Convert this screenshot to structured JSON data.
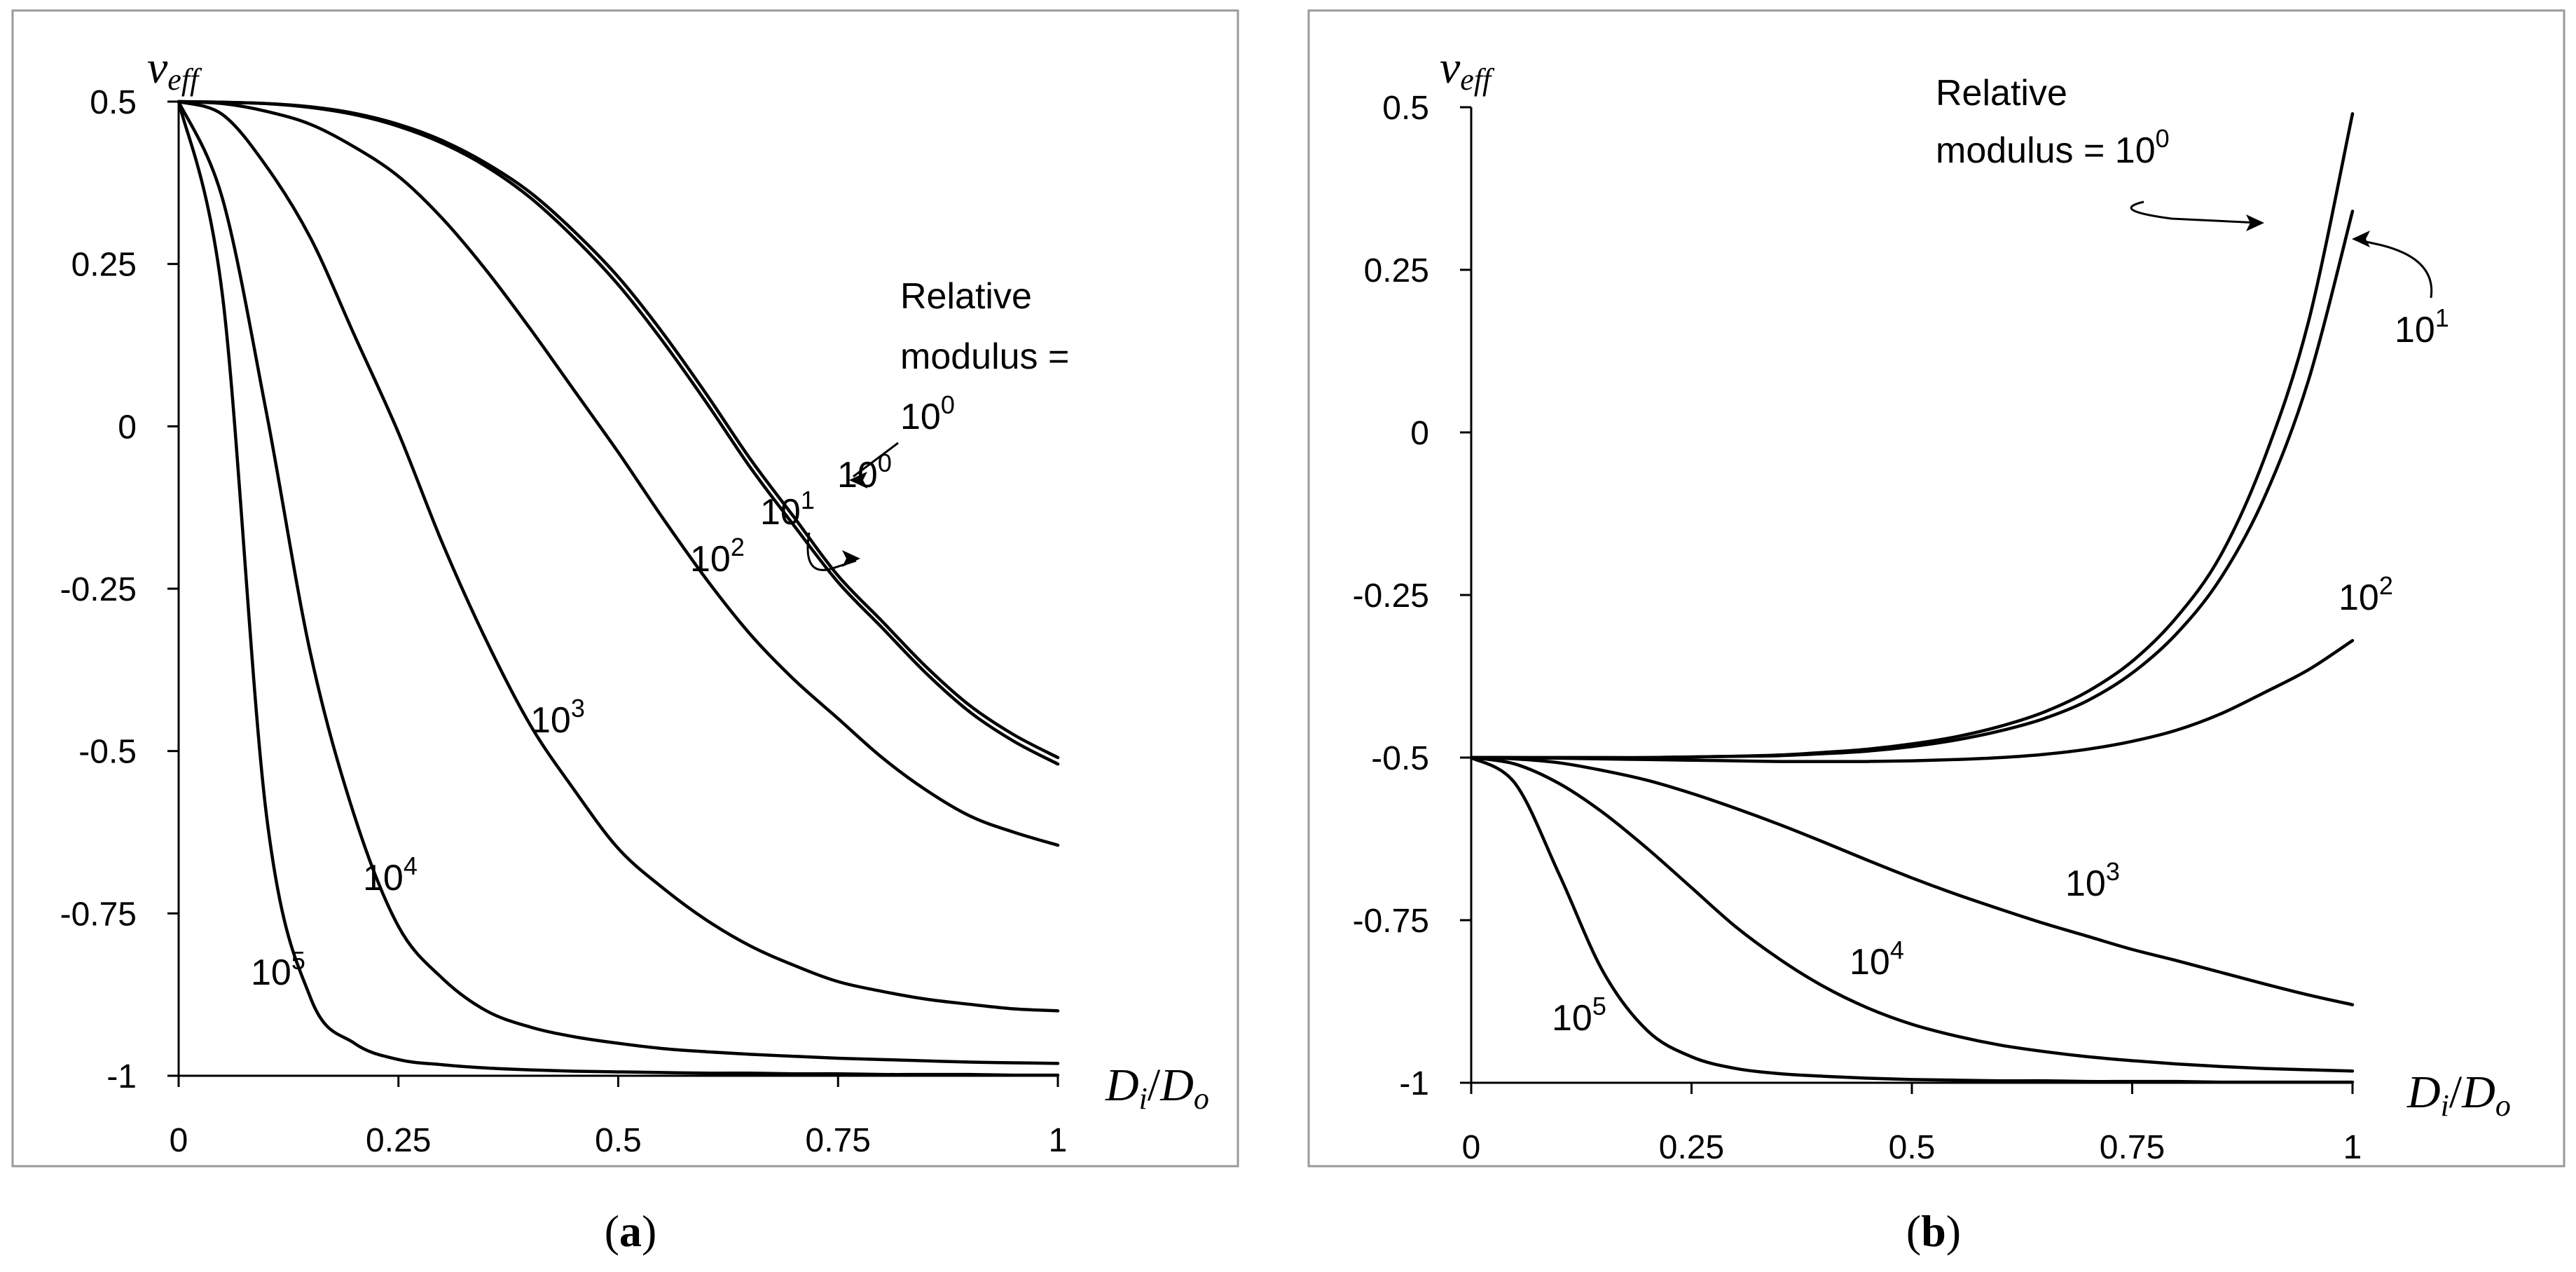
{
  "chart_data": [
    {
      "id": "a",
      "type": "line",
      "caption": {
        "open": "(",
        "letter": "a",
        "close": ")"
      },
      "ylabel": {
        "main": "v",
        "sub": "eff"
      },
      "xlabel": {
        "num": "D",
        "num_sub": "i",
        "slash": "/",
        "den": "D",
        "den_sub": "o"
      },
      "xlim": [
        0,
        1
      ],
      "ylim": [
        -1,
        0.5
      ],
      "xticks": [
        0,
        0.25,
        0.5,
        0.75,
        1
      ],
      "xtick_labels": [
        "0",
        "0.25",
        "0.5",
        "0.75",
        "1"
      ],
      "yticks": [
        0.5,
        0.25,
        0,
        -0.25,
        -0.5,
        -0.75,
        -1
      ],
      "ytick_labels": [
        "0.5",
        "0.25",
        "0",
        "-0.25",
        "-0.5",
        "-0.75",
        "-1"
      ],
      "title_lines": [
        "Relative",
        "modulus =",
        "10"
      ],
      "title_sup": "0",
      "x": [
        0,
        0.05,
        0.1,
        0.15,
        0.2,
        0.25,
        0.3,
        0.35,
        0.4,
        0.45,
        0.5,
        0.55,
        0.6,
        0.65,
        0.7,
        0.75,
        0.8,
        0.85,
        0.9,
        0.95,
        1
      ],
      "series": [
        {
          "name": "10^0",
          "base": "10",
          "exp": "0",
          "values": [
            0.5,
            0.499,
            0.497,
            0.492,
            0.482,
            0.465,
            0.44,
            0.405,
            0.36,
            0.3,
            0.23,
            0.145,
            0.05,
            -0.05,
            -0.14,
            -0.23,
            -0.3,
            -0.37,
            -0.43,
            -0.475,
            -0.51
          ]
        },
        {
          "name": "10^1",
          "base": "10",
          "exp": "1",
          "values": [
            0.5,
            0.499,
            0.497,
            0.491,
            0.48,
            0.462,
            0.436,
            0.4,
            0.352,
            0.29,
            0.218,
            0.132,
            0.037,
            -0.063,
            -0.153,
            -0.24,
            -0.31,
            -0.38,
            -0.44,
            -0.485,
            -0.52
          ]
        },
        {
          "name": "10^2",
          "base": "10",
          "exp": "2",
          "values": [
            0.5,
            0.497,
            0.485,
            0.465,
            0.43,
            0.385,
            0.32,
            0.24,
            0.15,
            0.055,
            -0.04,
            -0.14,
            -0.235,
            -0.32,
            -0.39,
            -0.45,
            -0.51,
            -0.56,
            -0.6,
            -0.625,
            -0.645
          ]
        },
        {
          "name": "10^3",
          "base": "10",
          "exp": "3",
          "values": [
            0.5,
            0.48,
            0.4,
            0.29,
            0.14,
            -0.01,
            -0.18,
            -0.33,
            -0.46,
            -0.56,
            -0.65,
            -0.71,
            -0.76,
            -0.8,
            -0.83,
            -0.855,
            -0.87,
            -0.882,
            -0.89,
            -0.897,
            -0.9
          ]
        },
        {
          "name": "10^4",
          "base": "10",
          "exp": "4",
          "values": [
            0.5,
            0.35,
            0.02,
            -0.35,
            -0.6,
            -0.77,
            -0.85,
            -0.9,
            -0.925,
            -0.94,
            -0.95,
            -0.958,
            -0.963,
            -0.967,
            -0.97,
            -0.973,
            -0.975,
            -0.977,
            -0.979,
            -0.98,
            -0.981
          ]
        },
        {
          "name": "10^5",
          "base": "10",
          "exp": "5",
          "values": [
            0.5,
            0.2,
            -0.6,
            -0.88,
            -0.95,
            -0.975,
            -0.983,
            -0.988,
            -0.991,
            -0.993,
            -0.994,
            -0.995,
            -0.996,
            -0.996,
            -0.997,
            -0.997,
            -0.998,
            -0.998,
            -0.998,
            -0.999,
            -0.999
          ]
        }
      ]
    },
    {
      "id": "b",
      "type": "line",
      "caption": {
        "open": "(",
        "letter": "b",
        "close": ")"
      },
      "ylabel": {
        "main": "v",
        "sub": "eff"
      },
      "xlabel": {
        "num": "D",
        "num_sub": "i",
        "slash": "/",
        "den": "D",
        "den_sub": "o"
      },
      "xlim": [
        0,
        1
      ],
      "ylim": [
        -1,
        0.5
      ],
      "xticks": [
        0,
        0.25,
        0.5,
        0.75,
        1
      ],
      "xtick_labels": [
        "0",
        "0.25",
        "0.5",
        "0.75",
        "1"
      ],
      "yticks": [
        0.5,
        0.25,
        0,
        -0.25,
        -0.5,
        -0.75,
        -1
      ],
      "ytick_labels": [
        "0.5",
        "0.25",
        "0",
        "-0.25",
        "-0.5",
        "-0.75",
        "-1"
      ],
      "title_lines": [
        "Relative",
        "modulus = 10"
      ],
      "title_sup": "0",
      "x": [
        0,
        0.05,
        0.1,
        0.15,
        0.2,
        0.25,
        0.3,
        0.35,
        0.4,
        0.45,
        0.5,
        0.55,
        0.6,
        0.65,
        0.7,
        0.75,
        0.8,
        0.85,
        0.9,
        0.95,
        1
      ],
      "series": [
        {
          "name": "10^0",
          "base": "10",
          "exp": "0",
          "values": [
            -0.5,
            -0.5,
            -0.5,
            -0.5,
            -0.5,
            -0.499,
            -0.498,
            -0.496,
            -0.492,
            -0.487,
            -0.479,
            -0.468,
            -0.452,
            -0.43,
            -0.398,
            -0.352,
            -0.285,
            -0.19,
            -0.04,
            0.17,
            0.49
          ]
        },
        {
          "name": "10^1",
          "base": "10",
          "exp": "1",
          "values": [
            -0.5,
            -0.5,
            -0.5,
            -0.5,
            -0.5,
            -0.499,
            -0.498,
            -0.497,
            -0.494,
            -0.49,
            -0.483,
            -0.473,
            -0.459,
            -0.44,
            -0.412,
            -0.37,
            -0.31,
            -0.225,
            -0.1,
            0.08,
            0.34
          ]
        },
        {
          "name": "10^2",
          "base": "10",
          "exp": "2",
          "values": [
            -0.5,
            -0.5,
            -0.501,
            -0.502,
            -0.503,
            -0.504,
            -0.505,
            -0.506,
            -0.506,
            -0.506,
            -0.505,
            -0.503,
            -0.5,
            -0.495,
            -0.487,
            -0.475,
            -0.458,
            -0.433,
            -0.4,
            -0.365,
            -0.32
          ]
        },
        {
          "name": "10^3",
          "base": "10",
          "exp": "3",
          "values": [
            -0.5,
            -0.502,
            -0.508,
            -0.52,
            -0.535,
            -0.555,
            -0.578,
            -0.603,
            -0.63,
            -0.658,
            -0.685,
            -0.71,
            -0.733,
            -0.755,
            -0.775,
            -0.795,
            -0.812,
            -0.83,
            -0.848,
            -0.865,
            -0.88
          ]
        },
        {
          "name": "10^4",
          "base": "10",
          "exp": "4",
          "values": [
            -0.5,
            -0.51,
            -0.54,
            -0.585,
            -0.64,
            -0.7,
            -0.76,
            -0.81,
            -0.852,
            -0.885,
            -0.91,
            -0.928,
            -0.942,
            -0.952,
            -0.96,
            -0.966,
            -0.971,
            -0.975,
            -0.978,
            -0.98,
            -0.982
          ]
        },
        {
          "name": "10^5",
          "base": "10",
          "exp": "5",
          "values": [
            -0.5,
            -0.54,
            -0.68,
            -0.83,
            -0.92,
            -0.96,
            -0.978,
            -0.986,
            -0.99,
            -0.993,
            -0.995,
            -0.996,
            -0.997,
            -0.997,
            -0.998,
            -0.998,
            -0.998,
            -0.999,
            -0.999,
            -0.999,
            -0.999
          ]
        }
      ]
    }
  ]
}
